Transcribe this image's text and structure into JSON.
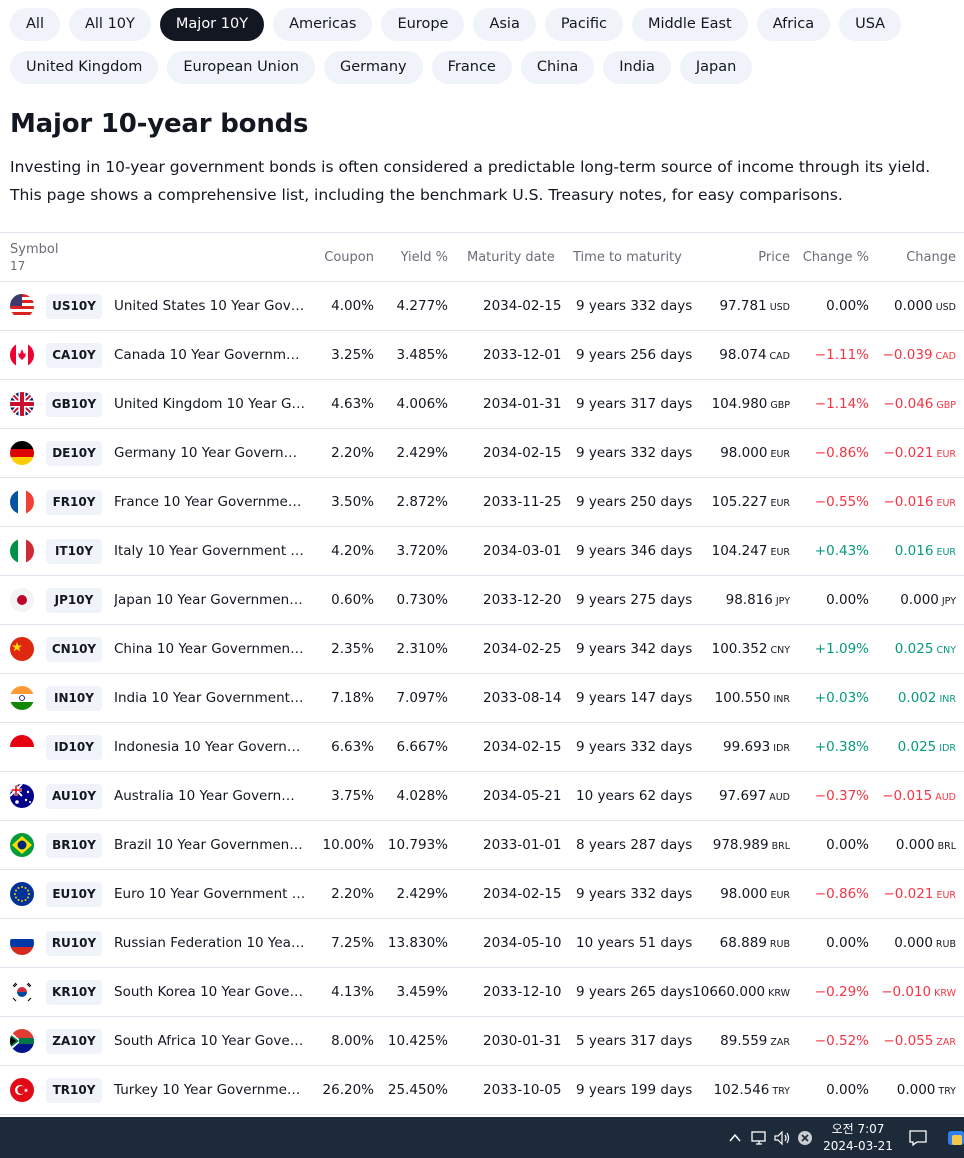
{
  "filters": {
    "row1": [
      {
        "label": "All",
        "active": false
      },
      {
        "label": "All 10Y",
        "active": false
      },
      {
        "label": "Major 10Y",
        "active": true
      },
      {
        "label": "Americas",
        "active": false
      },
      {
        "label": "Europe",
        "active": false
      },
      {
        "label": "Asia",
        "active": false
      },
      {
        "label": "Pacific",
        "active": false
      },
      {
        "label": "Middle East",
        "active": false
      },
      {
        "label": "Africa",
        "active": false
      },
      {
        "label": "USA",
        "active": false
      }
    ],
    "row2": [
      {
        "label": "United Kingdom",
        "active": false
      },
      {
        "label": "European Union",
        "active": false
      },
      {
        "label": "Germany",
        "active": false
      },
      {
        "label": "France",
        "active": false
      },
      {
        "label": "China",
        "active": false
      },
      {
        "label": "India",
        "active": false
      },
      {
        "label": "Japan",
        "active": false
      }
    ]
  },
  "page": {
    "title": "Major 10-year bonds",
    "description": "Investing in 10-year government bonds is often considered a predictable long-term source of income through its yield. This page shows a comprehensive list, including the benchmark U.S. Treasury notes, for easy comparisons."
  },
  "table": {
    "headers": {
      "symbol": "Symbol",
      "count": "17",
      "coupon": "Coupon",
      "yield": "Yield %",
      "maturity": "Maturity date",
      "ttm": "Time to maturity",
      "price": "Price",
      "change_pct": "Change %",
      "change": "Change"
    },
    "rows": [
      {
        "flag": "us-flag-icon",
        "ticker": "US10Y",
        "name": "United States 10 Year Gover…",
        "coupon": "4.00%",
        "yield": "4.277%",
        "maturity": "2034-02-15",
        "ttm": "9 years 332 days",
        "price": "97.781",
        "currency": "USD",
        "change_pct": "0.00%",
        "change": "0.000",
        "dir": "flat"
      },
      {
        "flag": "ca-flag-icon",
        "ticker": "CA10Y",
        "name": "Canada 10 Year Government …",
        "coupon": "3.25%",
        "yield": "3.485%",
        "maturity": "2033-12-01",
        "ttm": "9 years 256 days",
        "price": "98.074",
        "currency": "CAD",
        "change_pct": "−1.11%",
        "change": "−0.039",
        "dir": "neg"
      },
      {
        "flag": "gb-flag-icon",
        "ticker": "GB10Y",
        "name": "United Kingdom 10 Year Gov…",
        "coupon": "4.63%",
        "yield": "4.006%",
        "maturity": "2034-01-31",
        "ttm": "9 years 317 days",
        "price": "104.980",
        "currency": "GBP",
        "change_pct": "−1.14%",
        "change": "−0.046",
        "dir": "neg"
      },
      {
        "flag": "de-flag-icon",
        "ticker": "DE10Y",
        "name": "Germany 10 Year Governmen…",
        "coupon": "2.20%",
        "yield": "2.429%",
        "maturity": "2034-02-15",
        "ttm": "9 years 332 days",
        "price": "98.000",
        "currency": "EUR",
        "change_pct": "−0.86%",
        "change": "−0.021",
        "dir": "neg"
      },
      {
        "flag": "fr-flag-icon",
        "ticker": "FR10Y",
        "name": "France 10 Year Government …",
        "coupon": "3.50%",
        "yield": "2.872%",
        "maturity": "2033-11-25",
        "ttm": "9 years 250 days",
        "price": "105.227",
        "currency": "EUR",
        "change_pct": "−0.55%",
        "change": "−0.016",
        "dir": "neg"
      },
      {
        "flag": "it-flag-icon",
        "ticker": "IT10Y",
        "name": "Italy 10 Year Government Bo…",
        "coupon": "4.20%",
        "yield": "3.720%",
        "maturity": "2034-03-01",
        "ttm": "9 years 346 days",
        "price": "104.247",
        "currency": "EUR",
        "change_pct": "+0.43%",
        "change": "0.016",
        "dir": "pos"
      },
      {
        "flag": "jp-flag-icon",
        "ticker": "JP10Y",
        "name": "Japan 10 Year Government B…",
        "coupon": "0.60%",
        "yield": "0.730%",
        "maturity": "2033-12-20",
        "ttm": "9 years 275 days",
        "price": "98.816",
        "currency": "JPY",
        "change_pct": "0.00%",
        "change": "0.000",
        "dir": "flat"
      },
      {
        "flag": "cn-flag-icon",
        "ticker": "CN10Y",
        "name": "China 10 Year Government B…",
        "coupon": "2.35%",
        "yield": "2.310%",
        "maturity": "2034-02-25",
        "ttm": "9 years 342 days",
        "price": "100.352",
        "currency": "CNY",
        "change_pct": "+1.09%",
        "change": "0.025",
        "dir": "pos"
      },
      {
        "flag": "in-flag-icon",
        "ticker": "IN10Y",
        "name": "India 10 Year Government Bo…",
        "coupon": "7.18%",
        "yield": "7.097%",
        "maturity": "2033-08-14",
        "ttm": "9 years 147 days",
        "price": "100.550",
        "currency": "INR",
        "change_pct": "+0.03%",
        "change": "0.002",
        "dir": "pos"
      },
      {
        "flag": "id-flag-icon",
        "ticker": "ID10Y",
        "name": "Indonesia 10 Year Governme…",
        "coupon": "6.63%",
        "yield": "6.667%",
        "maturity": "2034-02-15",
        "ttm": "9 years 332 days",
        "price": "99.693",
        "currency": "IDR",
        "change_pct": "+0.38%",
        "change": "0.025",
        "dir": "pos"
      },
      {
        "flag": "au-flag-icon",
        "ticker": "AU10Y",
        "name": "Australia 10 Year Governmen…",
        "coupon": "3.75%",
        "yield": "4.028%",
        "maturity": "2034-05-21",
        "ttm": "10 years 62 days",
        "price": "97.697",
        "currency": "AUD",
        "change_pct": "−0.37%",
        "change": "−0.015",
        "dir": "neg"
      },
      {
        "flag": "br-flag-icon",
        "ticker": "BR10Y",
        "name": "Brazil 10 Year Government B…",
        "coupon": "10.00%",
        "yield": "10.793%",
        "maturity": "2033-01-01",
        "ttm": "8 years 287 days",
        "price": "978.989",
        "currency": "BRL",
        "change_pct": "0.00%",
        "change": "0.000",
        "dir": "flat"
      },
      {
        "flag": "eu-flag-icon",
        "ticker": "EU10Y",
        "name": "Euro 10 Year Government Bo…",
        "coupon": "2.20%",
        "yield": "2.429%",
        "maturity": "2034-02-15",
        "ttm": "9 years 332 days",
        "price": "98.000",
        "currency": "EUR",
        "change_pct": "−0.86%",
        "change": "−0.021",
        "dir": "neg"
      },
      {
        "flag": "ru-flag-icon",
        "ticker": "RU10Y",
        "name": "Russian Federation 10 Year G…",
        "coupon": "7.25%",
        "yield": "13.830%",
        "maturity": "2034-05-10",
        "ttm": "10 years 51 days",
        "price": "68.889",
        "currency": "RUB",
        "change_pct": "0.00%",
        "change": "0.000",
        "dir": "flat"
      },
      {
        "flag": "kr-flag-icon",
        "ticker": "KR10Y",
        "name": "South Korea 10 Year Govern…",
        "coupon": "4.13%",
        "yield": "3.459%",
        "maturity": "2033-12-10",
        "ttm": "9 years 265 days",
        "price": "10660.000",
        "currency": "KRW",
        "change_pct": "−0.29%",
        "change": "−0.010",
        "dir": "neg"
      },
      {
        "flag": "za-flag-icon",
        "ticker": "ZA10Y",
        "name": "South Africa 10 Year Govern…",
        "coupon": "8.00%",
        "yield": "10.425%",
        "maturity": "2030-01-31",
        "ttm": "5 years 317 days",
        "price": "89.559",
        "currency": "ZAR",
        "change_pct": "−0.52%",
        "change": "−0.055",
        "dir": "neg"
      },
      {
        "flag": "tr-flag-icon",
        "ticker": "TR10Y",
        "name": "Turkey 10 Year Government …",
        "coupon": "26.20%",
        "yield": "25.450%",
        "maturity": "2033-10-05",
        "ttm": "9 years 199 days",
        "price": "102.546",
        "currency": "TRY",
        "change_pct": "0.00%",
        "change": "0.000",
        "dir": "flat"
      }
    ]
  },
  "colors": {
    "negative": "#f23645",
    "positive": "#089981",
    "chip_bg": "#f0f3fa",
    "chip_active_bg": "#131722"
  },
  "taskbar": {
    "time": "오전 7:07",
    "date": "2024-03-21",
    "icons": [
      "chevron-up-icon",
      "network-icon",
      "volume-icon",
      "close-circle-icon",
      "notification-icon",
      "app-icon"
    ]
  }
}
